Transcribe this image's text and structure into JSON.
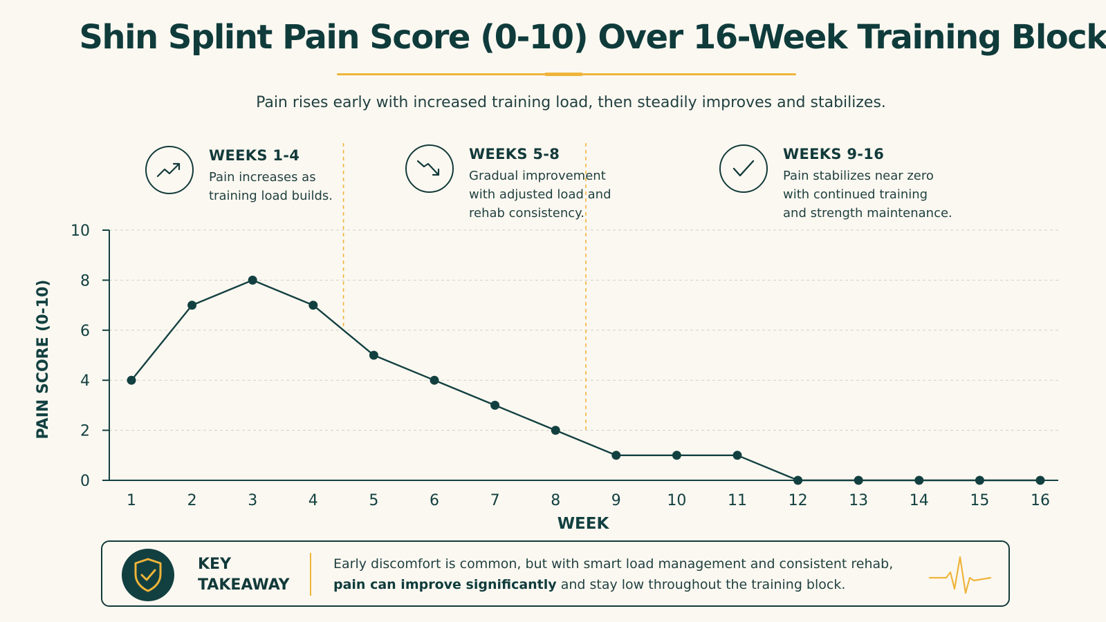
{
  "header": {
    "title": "Shin Splint Pain Score (0-10) Over 16-Week Training Block",
    "subtitle": "Pain rises early with increased training load, then steadily improves and stabilizes."
  },
  "phases": [
    {
      "title": "WEEKS 1-4",
      "description": "Pain increases as\ntraining load builds.",
      "icon": "trending-up-icon"
    },
    {
      "title": "WEEKS 5-8",
      "description": "Gradual improvement\nwith adjusted load and\nrehab consistency.",
      "icon": "trending-down-icon"
    },
    {
      "title": "WEEKS 9-16",
      "description": "Pain stabilizes near zero\nwith continued training\nand strength maintenance.",
      "icon": "checkmark-icon"
    }
  ],
  "chart_data": {
    "type": "line",
    "title": "Shin Splint Pain Score (0-10) Over 16-Week Training Block",
    "xlabel": "WEEK",
    "ylabel": "PAIN SCORE (0-10)",
    "x": [
      1,
      2,
      3,
      4,
      5,
      6,
      7,
      8,
      9,
      10,
      11,
      12,
      13,
      14,
      15,
      16
    ],
    "series": [
      {
        "values": [
          4,
          7,
          8,
          7,
          5,
          4,
          3,
          2,
          1,
          1,
          1,
          0,
          0,
          0,
          0,
          0
        ]
      }
    ],
    "ylim": [
      0,
      10
    ],
    "yticks": [
      0,
      2,
      4,
      6,
      8,
      10
    ],
    "grid": true,
    "phase_boundaries": [
      4.5,
      8.5
    ],
    "line_color": "#124040",
    "accent_color": "#efb43a"
  },
  "takeaway": {
    "label_line1": "KEY",
    "label_line2": "TAKEAWAY",
    "text_line1": "Early discomfort is common, but with smart load management and consistent rehab,",
    "text_bold": "pain can improve significantly",
    "text_rest": " and stay low throughout the training block.",
    "icon": "shield-check-icon",
    "pulse_icon": "heartbeat-icon"
  }
}
